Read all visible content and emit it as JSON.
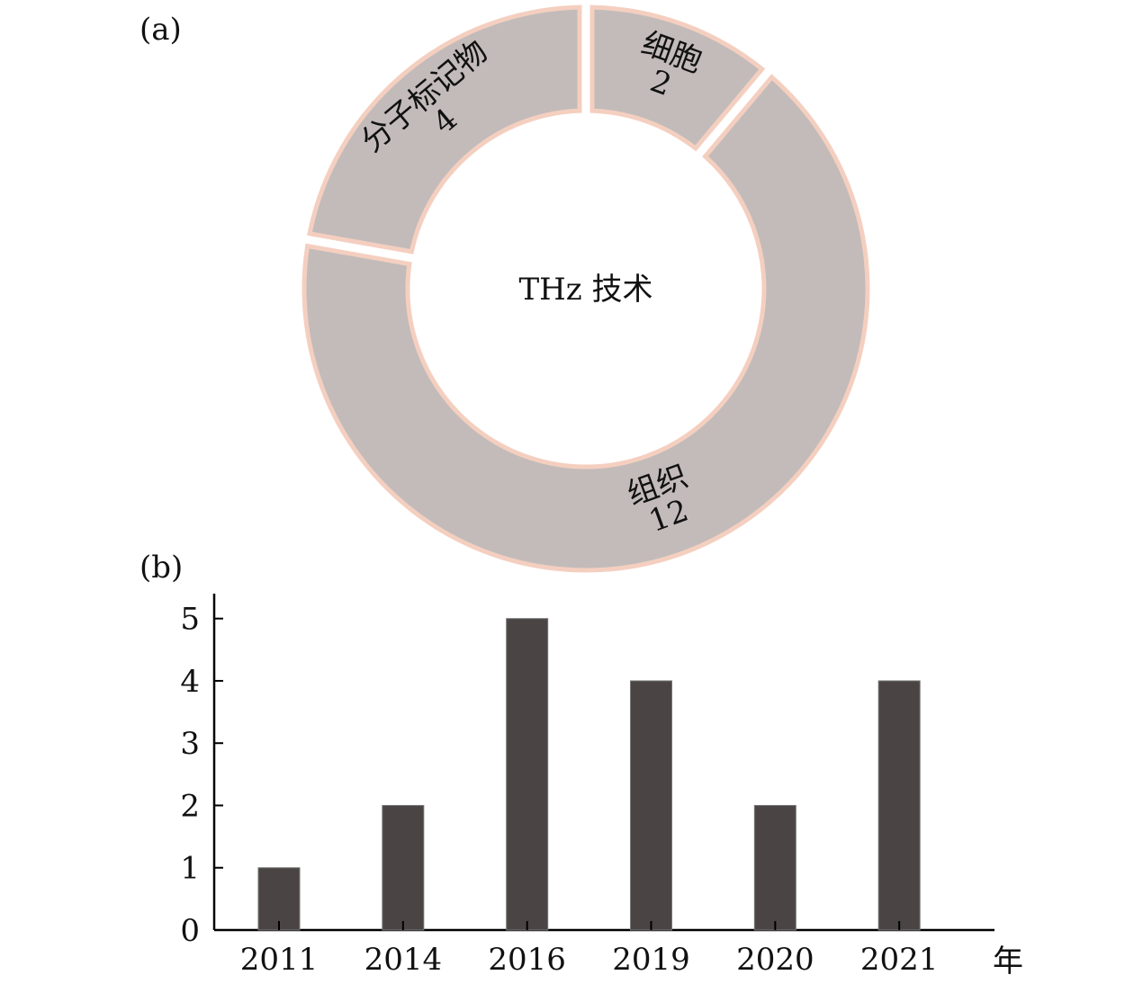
{
  "panel_a_label": "(a)",
  "panel_b_label": "(b)",
  "chart_data": [
    {
      "type": "pie",
      "style": "donut",
      "center_label": "THz 技术",
      "labels": [
        "细胞",
        "组织",
        "分子标记物"
      ],
      "values": [
        2,
        12,
        4
      ],
      "slice_fill": "#c2bbb9",
      "slice_edge": "#f4cfc0"
    },
    {
      "type": "bar",
      "categories": [
        "2011",
        "2014",
        "2016",
        "2019",
        "2020",
        "2021"
      ],
      "values": [
        1,
        2,
        5,
        4,
        2,
        4
      ],
      "xlabel": "年",
      "ylabel": "",
      "ylim": [
        0,
        5.4
      ],
      "yticks": [
        0,
        1,
        2,
        3,
        4,
        5
      ],
      "bar_color": "#4a4544",
      "grid": false
    }
  ]
}
